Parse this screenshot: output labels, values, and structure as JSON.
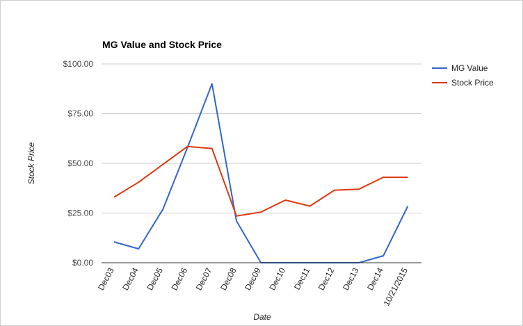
{
  "chart_data": {
    "type": "line",
    "title": "MG Value and Stock Price",
    "xlabel": "Date",
    "ylabel": "Stock Price",
    "ylim": [
      0,
      100
    ],
    "yticks": [
      "$0.00",
      "$25.00",
      "$50.00",
      "$75.00",
      "$100.00"
    ],
    "yticks_values": [
      0,
      25,
      50,
      75,
      100
    ],
    "categories": [
      "Dec03",
      "Dec04",
      "Dec05",
      "Dec06",
      "Dec07",
      "Dec08",
      "Dec09",
      "Dec10",
      "Dec11",
      "Dec12",
      "Dec13",
      "Dec14",
      "10/21/2015"
    ],
    "grid": true,
    "legend_position": "right",
    "series": [
      {
        "name": "MG Value",
        "color": "#3366cc",
        "values": [
          10.5,
          7,
          27,
          58,
          90,
          21,
          0,
          0,
          0,
          0,
          0,
          3.5,
          28.5
        ]
      },
      {
        "name": "Stock Price",
        "color": "#dc3912",
        "values": [
          33,
          40.5,
          49.5,
          58.5,
          57.5,
          23.5,
          25.5,
          31.5,
          28.5,
          36.5,
          37,
          43,
          43
        ]
      }
    ]
  }
}
